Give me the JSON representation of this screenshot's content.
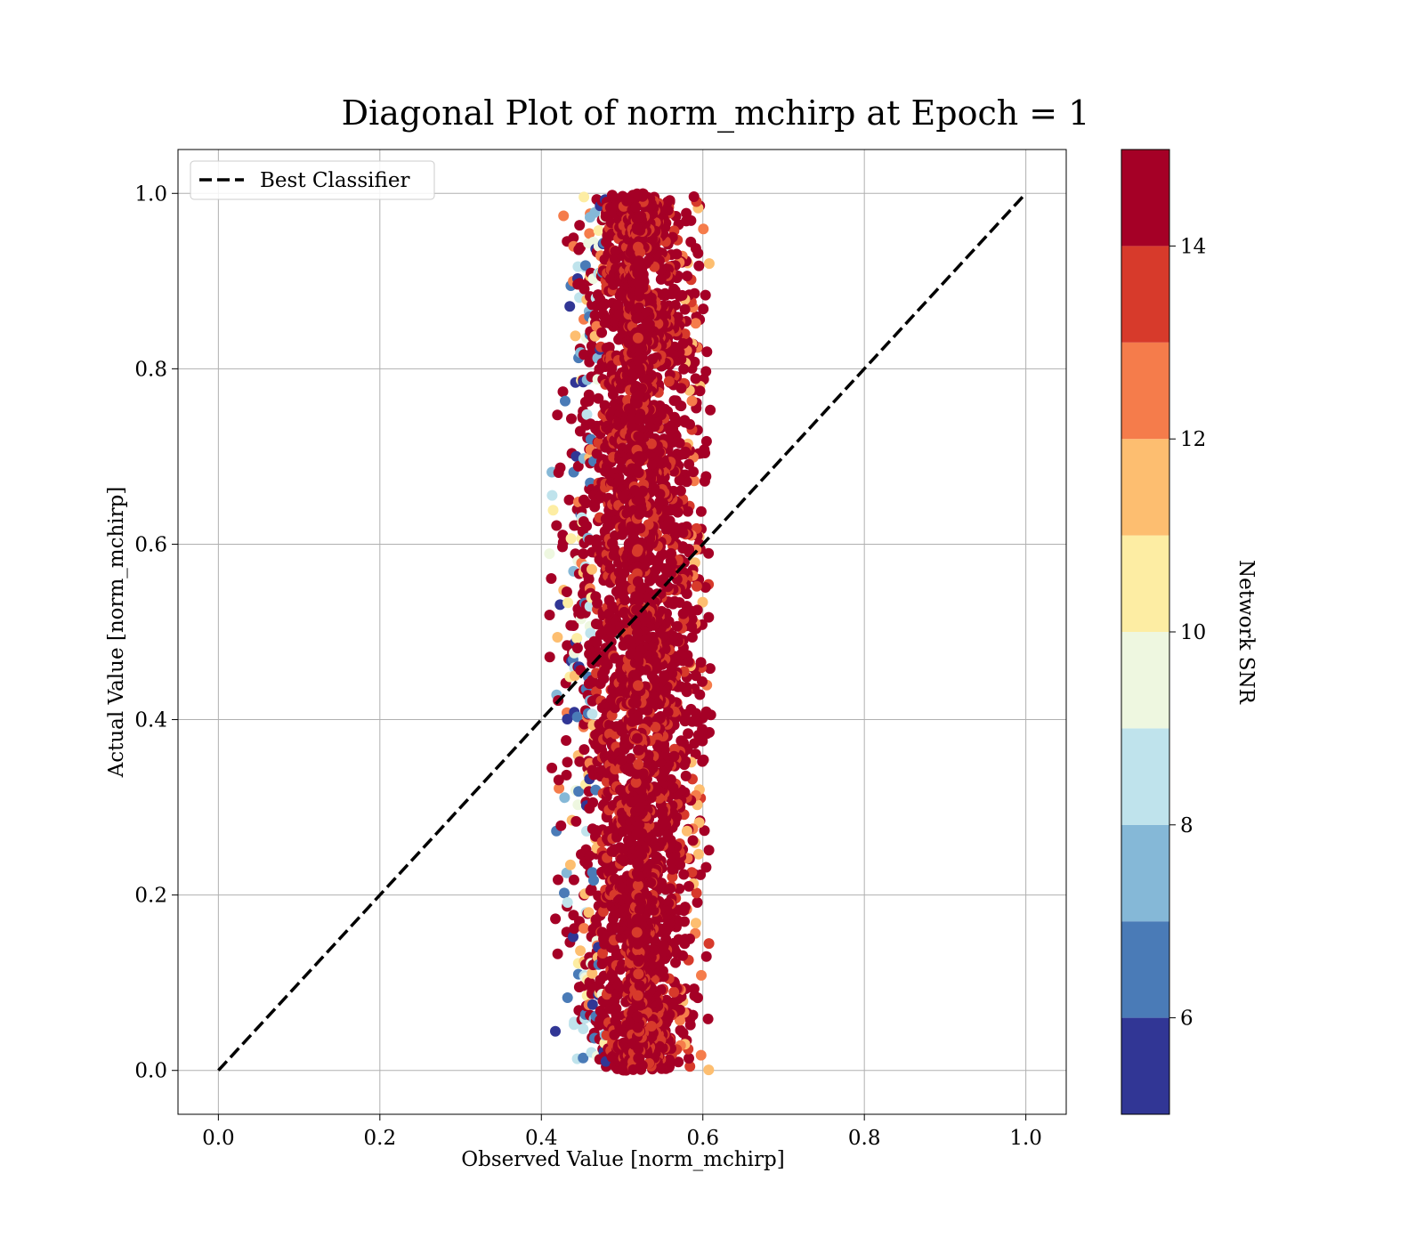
{
  "chart_data": {
    "type": "scatter",
    "title": "Diagonal Plot of norm_mchirp at Epoch = 1",
    "xlabel": "Observed Value [norm_mchirp]",
    "ylabel": "Actual Value [norm_mchirp]",
    "xlim": [
      -0.05,
      1.05
    ],
    "ylim": [
      -0.05,
      1.05
    ],
    "grid": true,
    "x_ticks": [
      "0.0",
      "0.2",
      "0.4",
      "0.6",
      "0.8",
      "1.0"
    ],
    "y_ticks": [
      "0.0",
      "0.2",
      "0.4",
      "0.6",
      "0.8",
      "1.0"
    ],
    "legend": {
      "placement": "top-left",
      "entries": [
        {
          "label": "Best Classifier",
          "style": "dashed",
          "color": "#000000"
        }
      ]
    },
    "reference_line": {
      "name": "Best Classifier",
      "x": [
        0.0,
        1.0
      ],
      "y": [
        0.0,
        1.0
      ]
    },
    "scatter_description": {
      "x_center": 0.52,
      "x_spread": 0.04,
      "x_range": [
        0.41,
        0.61
      ],
      "y_range": [
        0.0,
        1.0
      ],
      "dominant_color_value": 15
    },
    "colorbar": {
      "label": "Network SNR",
      "min": 5,
      "max": 15,
      "ticks": [
        6,
        8,
        10,
        12,
        14
      ],
      "bins": [
        {
          "from": 5,
          "to": 6,
          "color": "#313695"
        },
        {
          "from": 6,
          "to": 7,
          "color": "#4a7bb7"
        },
        {
          "from": 7,
          "to": 8,
          "color": "#85b8d7"
        },
        {
          "from": 8,
          "to": 9,
          "color": "#bfe3ec"
        },
        {
          "from": 9,
          "to": 10,
          "color": "#eef7e0"
        },
        {
          "from": 10,
          "to": 11,
          "color": "#fdeda3"
        },
        {
          "from": 11,
          "to": 12,
          "color": "#fdbe70"
        },
        {
          "from": 12,
          "to": 13,
          "color": "#f57c4b"
        },
        {
          "from": 13,
          "to": 14,
          "color": "#d73a2b"
        },
        {
          "from": 14,
          "to": 15,
          "color": "#a50026"
        }
      ]
    }
  }
}
